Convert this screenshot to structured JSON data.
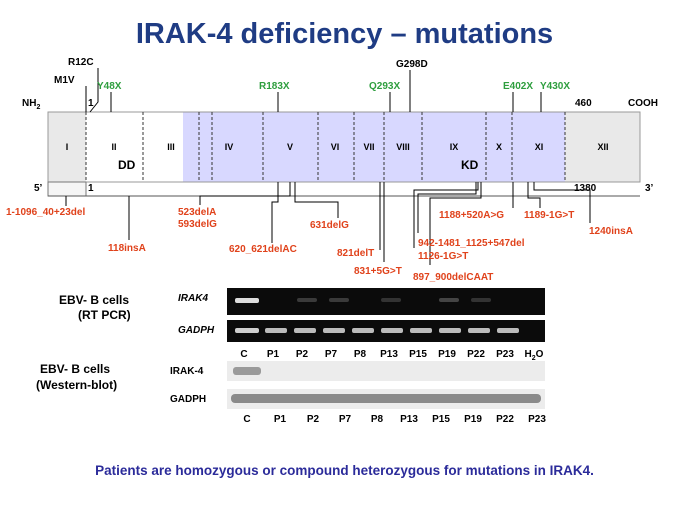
{
  "title": "IRAK-4 deficiency – mutations",
  "protein": {
    "nterm": "NH",
    "nterm_sub": "2",
    "cterm": "COOH",
    "start": "1",
    "end": "460",
    "exons": [
      "I",
      "II",
      "III",
      "IV",
      "V",
      "VI",
      "VII",
      "VIII",
      "IX",
      "X",
      "XI",
      "XII"
    ],
    "domains": {
      "dd": "DD",
      "kd": "KD"
    }
  },
  "cdna": {
    "five": "5’",
    "three": "3’",
    "start": "1",
    "end": "1380"
  },
  "top_mutations_black": [
    "R12C",
    "M1V",
    "G298D"
  ],
  "top_mutations_green": [
    "Y48X",
    "R183X",
    "Q293X",
    "E402X",
    "Y430X"
  ],
  "bottom_mutations": [
    "1-1096_40+23del",
    "118insA",
    "523delA",
    "593delG",
    "620_621delAC",
    "631delG",
    "821delT",
    "831+5G>T",
    "897_900delCAAT",
    "942-1481_1125+547del",
    "1126-1G>T",
    "1188+520A>G",
    "1189-1G>T",
    "1240insA"
  ],
  "rtpcr": {
    "title1": "EBV- B cells",
    "title2": "(RT PCR)",
    "band1": "IRAK4",
    "band2": "GADPH",
    "lanes": [
      "C",
      "P1",
      "P2",
      "P7",
      "P8",
      "P13",
      "P15",
      "P19",
      "P22",
      "P23",
      "H"
    ],
    "h2o_sub": "2",
    "h2o_tail": "O"
  },
  "western": {
    "title1": "EBV- B cells",
    "title2": "(Western-blot)",
    "band1": "IRAK-4",
    "band2": "GADPH",
    "lanes": [
      "C",
      "P1",
      "P2",
      "P7",
      "P8",
      "P13",
      "P15",
      "P19",
      "P22",
      "P23"
    ]
  },
  "footer": "Patients are homozygous or compound heterozygous for mutations in IRAK4."
}
